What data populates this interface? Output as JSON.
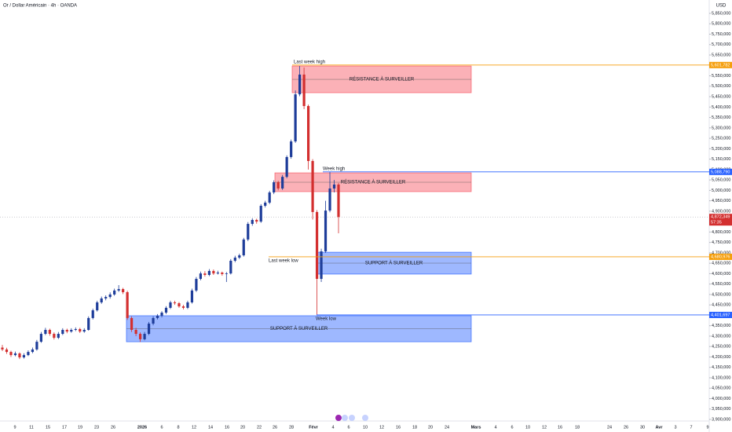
{
  "chart_data": {
    "type": "candlestick",
    "title": "Or / Dollar Américain · 4h · OANDA",
    "currency": "USD",
    "up_color": "#1e3d9a",
    "down_color": "#d32f2f",
    "ylim": [
      3900000,
      5850000
    ],
    "yticks": [
      {
        "value": 3900000,
        "label": "3,900,000"
      },
      {
        "value": 3950000,
        "label": "3,950,000"
      },
      {
        "value": 4000000,
        "label": "4,000,000"
      },
      {
        "value": 4050000,
        "label": "4,050,000"
      },
      {
        "value": 4100000,
        "label": "4,100,000"
      },
      {
        "value": 4150000,
        "label": "4,150,000"
      },
      {
        "value": 4200000,
        "label": "4,200,000"
      },
      {
        "value": 4250000,
        "label": "4,250,000"
      },
      {
        "value": 4300000,
        "label": "4,300,000"
      },
      {
        "value": 4350000,
        "label": "4,350,000"
      },
      {
        "value": 4400000,
        "label": "4,400,000"
      },
      {
        "value": 4450000,
        "label": "4,450,000"
      },
      {
        "value": 4500000,
        "label": "4,500,000"
      },
      {
        "value": 4550000,
        "label": "4,550,000"
      },
      {
        "value": 4600000,
        "label": "4,600,000"
      },
      {
        "value": 4650000,
        "label": "4,650,000"
      },
      {
        "value": 4700000,
        "label": "4,700,000"
      },
      {
        "value": 4750000,
        "label": "4,750,000"
      },
      {
        "value": 4800000,
        "label": "4,800,000"
      },
      {
        "value": 4850000,
        "label": "4,850,000"
      },
      {
        "value": 4900000,
        "label": "4,900,000"
      },
      {
        "value": 4950000,
        "label": "4,950,000"
      },
      {
        "value": 5000000,
        "label": "5,000,000"
      },
      {
        "value": 5050000,
        "label": "5,050,000"
      },
      {
        "value": 5100000,
        "label": "5,100,000"
      },
      {
        "value": 5150000,
        "label": "5,150,000"
      },
      {
        "value": 5200000,
        "label": "5,200,000"
      },
      {
        "value": 5250000,
        "label": "5,250,000"
      },
      {
        "value": 5300000,
        "label": "5,300,000"
      },
      {
        "value": 5350000,
        "label": "5,350,000"
      },
      {
        "value": 5400000,
        "label": "5,400,000"
      },
      {
        "value": 5450000,
        "label": "5,450,000"
      },
      {
        "value": 5500000,
        "label": "5,500,000"
      },
      {
        "value": 5550000,
        "label": "5,550,000"
      },
      {
        "value": 5600000,
        "label": "5,600,000"
      },
      {
        "value": 5650000,
        "label": "5,650,000"
      },
      {
        "value": 5700000,
        "label": "5,700,000"
      },
      {
        "value": 5750000,
        "label": "5,750,000"
      },
      {
        "value": 5800000,
        "label": "5,800,000"
      },
      {
        "value": 5850000,
        "label": "5,850,000"
      }
    ],
    "x_labels": [
      "9",
      "11",
      "15",
      "17",
      "19",
      "23",
      "26",
      "2026",
      "6",
      "8",
      "12",
      "14",
      "16",
      "20",
      "22",
      "26",
      "28",
      "Févr",
      "4",
      "6",
      "10",
      "12",
      "16",
      "18",
      "20",
      "24",
      "Mars",
      "4",
      "6",
      "10",
      "12",
      "16",
      "18",
      "24",
      "26",
      "30",
      "Avr",
      "3",
      "7",
      "9"
    ],
    "candles": [
      [
        4245000,
        4258000,
        4228000,
        4236000
      ],
      [
        4236000,
        4244000,
        4215000,
        4224000
      ],
      [
        4224000,
        4230000,
        4200000,
        4209000
      ],
      [
        4209000,
        4226000,
        4203000,
        4217000
      ],
      [
        4217000,
        4222000,
        4190000,
        4198000
      ],
      [
        4198000,
        4218000,
        4192000,
        4209000
      ],
      [
        4209000,
        4232000,
        4204000,
        4224000
      ],
      [
        4224000,
        4245000,
        4218000,
        4236000
      ],
      [
        4236000,
        4282000,
        4230000,
        4273000
      ],
      [
        4273000,
        4320000,
        4268000,
        4311000
      ],
      [
        4311000,
        4340000,
        4305000,
        4330000
      ],
      [
        4330000,
        4336000,
        4302000,
        4311000
      ],
      [
        4311000,
        4318000,
        4284000,
        4292000
      ],
      [
        4292000,
        4320000,
        4286000,
        4311000
      ],
      [
        4311000,
        4338000,
        4305000,
        4330000
      ],
      [
        4330000,
        4336000,
        4314000,
        4322000
      ],
      [
        4322000,
        4338000,
        4316000,
        4330000
      ],
      [
        4330000,
        4342000,
        4324000,
        4334000
      ],
      [
        4334000,
        4340000,
        4315000,
        4322000
      ],
      [
        4322000,
        4338000,
        4316000,
        4330000
      ],
      [
        4330000,
        4395000,
        4326000,
        4387000
      ],
      [
        4387000,
        4432000,
        4380000,
        4424000
      ],
      [
        4424000,
        4470000,
        4418000,
        4462000
      ],
      [
        4462000,
        4490000,
        4455000,
        4481000
      ],
      [
        4481000,
        4496000,
        4472000,
        4488000
      ],
      [
        4488000,
        4510000,
        4480000,
        4500000
      ],
      [
        4500000,
        4528000,
        4494000,
        4519000
      ],
      [
        4519000,
        4545000,
        4512000,
        4526000
      ],
      [
        4526000,
        4532000,
        4502000,
        4511000
      ],
      [
        4511000,
        4518000,
        4378000,
        4387000
      ],
      [
        4387000,
        4395000,
        4320000,
        4330000
      ],
      [
        4330000,
        4340000,
        4300000,
        4311000
      ],
      [
        4311000,
        4318000,
        4272000,
        4285000
      ],
      [
        4285000,
        4320000,
        4280000,
        4311000
      ],
      [
        4311000,
        4368000,
        4305000,
        4360000
      ],
      [
        4360000,
        4395000,
        4352000,
        4387000
      ],
      [
        4387000,
        4406000,
        4380000,
        4398000
      ],
      [
        4398000,
        4420000,
        4390000,
        4413000
      ],
      [
        4413000,
        4444000,
        4406000,
        4436000
      ],
      [
        4436000,
        4470000,
        4430000,
        4462000
      ],
      [
        4462000,
        4470000,
        4450000,
        4458000
      ],
      [
        4458000,
        4464000,
        4436000,
        4443000
      ],
      [
        4443000,
        4450000,
        4428000,
        4436000
      ],
      [
        4436000,
        4470000,
        4430000,
        4462000
      ],
      [
        4462000,
        4528000,
        4456000,
        4519000
      ],
      [
        4519000,
        4584000,
        4512000,
        4575000
      ],
      [
        4575000,
        4610000,
        4568000,
        4601000
      ],
      [
        4601000,
        4612000,
        4586000,
        4594000
      ],
      [
        4594000,
        4622000,
        4588000,
        4613000
      ],
      [
        4613000,
        4620000,
        4594000,
        4601000
      ],
      [
        4601000,
        4614000,
        4596000,
        4605000
      ],
      [
        4605000,
        4610000,
        4590000,
        4598000
      ],
      [
        4598000,
        4608000,
        4560000,
        4601000
      ],
      [
        4601000,
        4670000,
        4596000,
        4662000
      ],
      [
        4662000,
        4686000,
        4655000,
        4677000
      ],
      [
        4677000,
        4696000,
        4670000,
        4688000
      ],
      [
        4688000,
        4772000,
        4682000,
        4764000
      ],
      [
        4764000,
        4848000,
        4756000,
        4839000
      ],
      [
        4839000,
        4866000,
        4830000,
        4858000
      ],
      [
        4858000,
        4864000,
        4840000,
        4850000
      ],
      [
        4850000,
        4934000,
        4844000,
        4926000
      ],
      [
        4926000,
        4950000,
        4918000,
        4941000
      ],
      [
        4941000,
        4998000,
        4934000,
        4990000
      ],
      [
        4990000,
        5048000,
        4982000,
        5039000
      ],
      [
        5039000,
        5046000,
        5000000,
        5009000
      ],
      [
        5009000,
        5074000,
        5002000,
        5065000
      ],
      [
        5065000,
        5168000,
        5058000,
        5160000
      ],
      [
        5160000,
        5244000,
        5152000,
        5235000
      ],
      [
        5235000,
        5480000,
        5228000,
        5461000
      ],
      [
        5461000,
        5597000,
        5452000,
        5556000
      ],
      [
        5556000,
        5590000,
        5390000,
        5405000
      ],
      [
        5405000,
        5412000,
        5100000,
        5141000
      ],
      [
        5141000,
        5150000,
        4860000,
        4896000
      ],
      [
        4896000,
        4905000,
        4402000,
        4575000
      ],
      [
        4575000,
        4720000,
        4560000,
        4707000
      ],
      [
        4707000,
        4950000,
        4700000,
        4903000
      ],
      [
        4903000,
        5089000,
        4895000,
        5009000
      ],
      [
        5009000,
        5050000,
        4990000,
        5028000
      ],
      [
        5028000,
        5036000,
        4794000,
        4872000
      ]
    ],
    "zones": [
      {
        "label": "RÉSISTANCE À SURVEILLER",
        "high": 5597000,
        "low": 5469000,
        "color": "#f7525f"
      },
      {
        "label": "RÉSISTANCE À SURVEILLER",
        "high": 5084000,
        "low": 4994000,
        "color": "#f7525f"
      },
      {
        "label": "SUPPORT À SURVEILLER",
        "high": 4703000,
        "low": 4598000,
        "color": "#2962ff"
      },
      {
        "label": "SUPPORT À SURVEILLER",
        "high": 4398000,
        "low": 4273000,
        "color": "#2962ff"
      }
    ],
    "levels": [
      {
        "name": "Last week high",
        "value": 5601782,
        "label": "5,601,782",
        "color": "#f59e0b"
      },
      {
        "name": "Week high",
        "value": 5088790,
        "label": "5,088,790",
        "color": "#2962ff"
      },
      {
        "name": "Last week low",
        "value": 4680976,
        "label": "4,680,976",
        "color": "#f59e0b"
      },
      {
        "name": "Week low",
        "value": 4401697,
        "label": "4,401,697",
        "color": "#2962ff"
      }
    ],
    "last_price": {
      "value": 4872349,
      "label": "4,872,349",
      "countdown": "57:35",
      "color": "#d32f2f"
    }
  }
}
